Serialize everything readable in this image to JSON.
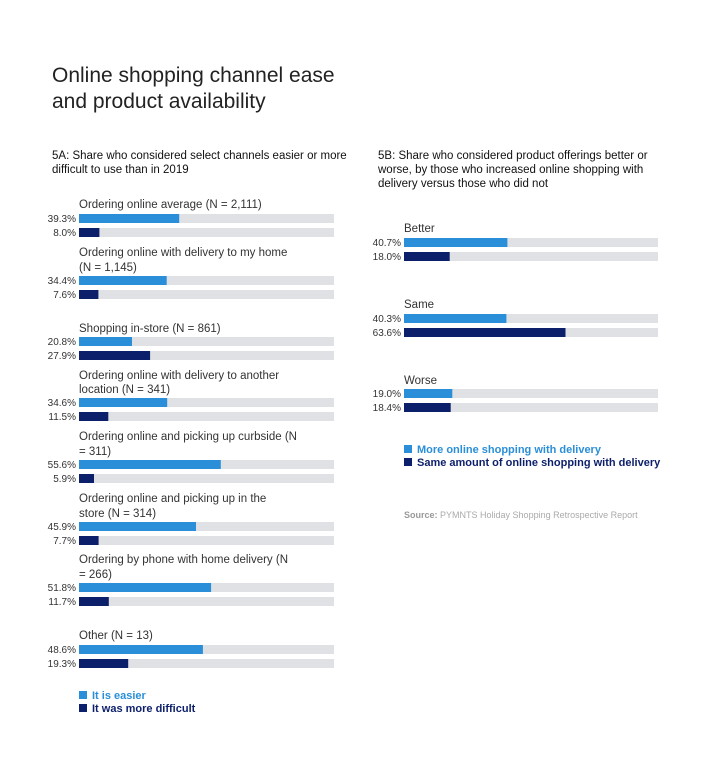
{
  "title": "Online shopping channel ease and product availability",
  "colors": {
    "light": "#2a8fd8",
    "dark": "#0c1f6a",
    "track": "#e0e1e4"
  },
  "chart_data": [
    {
      "id": "5A",
      "type": "bar",
      "title": "5A: Share who considered select channels easier or more difficult to use than in 2019",
      "xlim": [
        0,
        100
      ],
      "series": [
        {
          "name": "It is easier",
          "color": "#2a8fd8"
        },
        {
          "name": "It was more difficult",
          "color": "#0c1f6a"
        }
      ],
      "categories": [
        {
          "label": "Ordering online average (N = 2,111)",
          "values": [
            39.3,
            8.0
          ],
          "value_labels": [
            "39.3%",
            "8.0%"
          ]
        },
        {
          "label": "Ordering online with delivery to my home (N = 1,145)",
          "values": [
            34.4,
            7.6
          ],
          "value_labels": [
            "34.4%",
            "7.6%"
          ]
        },
        {
          "label": "Shopping in-store (N = 861)",
          "values": [
            20.8,
            27.9
          ],
          "value_labels": [
            "20.8%",
            "27.9%"
          ]
        },
        {
          "label": "Ordering online with delivery to another location (N = 341)",
          "values": [
            34.6,
            11.5
          ],
          "value_labels": [
            "34.6%",
            "11.5%"
          ]
        },
        {
          "label": "Ordering online and picking up curbside (N = 311)",
          "values": [
            55.6,
            5.9
          ],
          "value_labels": [
            "55.6%",
            "5.9%"
          ]
        },
        {
          "label": "Ordering online and picking up in the store (N = 314)",
          "values": [
            45.9,
            7.7
          ],
          "value_labels": [
            "45.9%",
            "7.7%"
          ]
        },
        {
          "label": "Ordering by phone with home delivery (N = 266)",
          "values": [
            51.8,
            11.7
          ],
          "value_labels": [
            "51.8%",
            "11.7%"
          ]
        },
        {
          "label": "Other (N = 13)",
          "values": [
            48.6,
            19.3
          ],
          "value_labels": [
            "48.6%",
            "19.3%"
          ]
        }
      ]
    },
    {
      "id": "5B",
      "type": "bar",
      "title": "5B: Share who considered product offerings better or worse, by those who increased online shopping with delivery versus those who did not",
      "xlim": [
        0,
        100
      ],
      "series": [
        {
          "name": "More online shopping with delivery",
          "color": "#2a8fd8"
        },
        {
          "name": "Same amount of online shopping with delivery",
          "color": "#0c1f6a"
        }
      ],
      "categories": [
        {
          "label": "Better",
          "values": [
            40.7,
            18.0
          ],
          "value_labels": [
            "40.7%",
            "18.0%"
          ]
        },
        {
          "label": "Same",
          "values": [
            40.3,
            63.6
          ],
          "value_labels": [
            "40.3%",
            "63.6%"
          ]
        },
        {
          "label": "Worse",
          "values": [
            19.0,
            18.4
          ],
          "value_labels": [
            "19.0%",
            "18.4%"
          ]
        }
      ]
    }
  ],
  "legend_a": [
    "It is easier",
    "It was more difficult"
  ],
  "legend_b": [
    "More online shopping with delivery",
    "Same amount of online shopping with delivery"
  ],
  "source": {
    "prefix": "Source:",
    "text": "PYMNTS Holiday Shopping Retrospective Report"
  }
}
